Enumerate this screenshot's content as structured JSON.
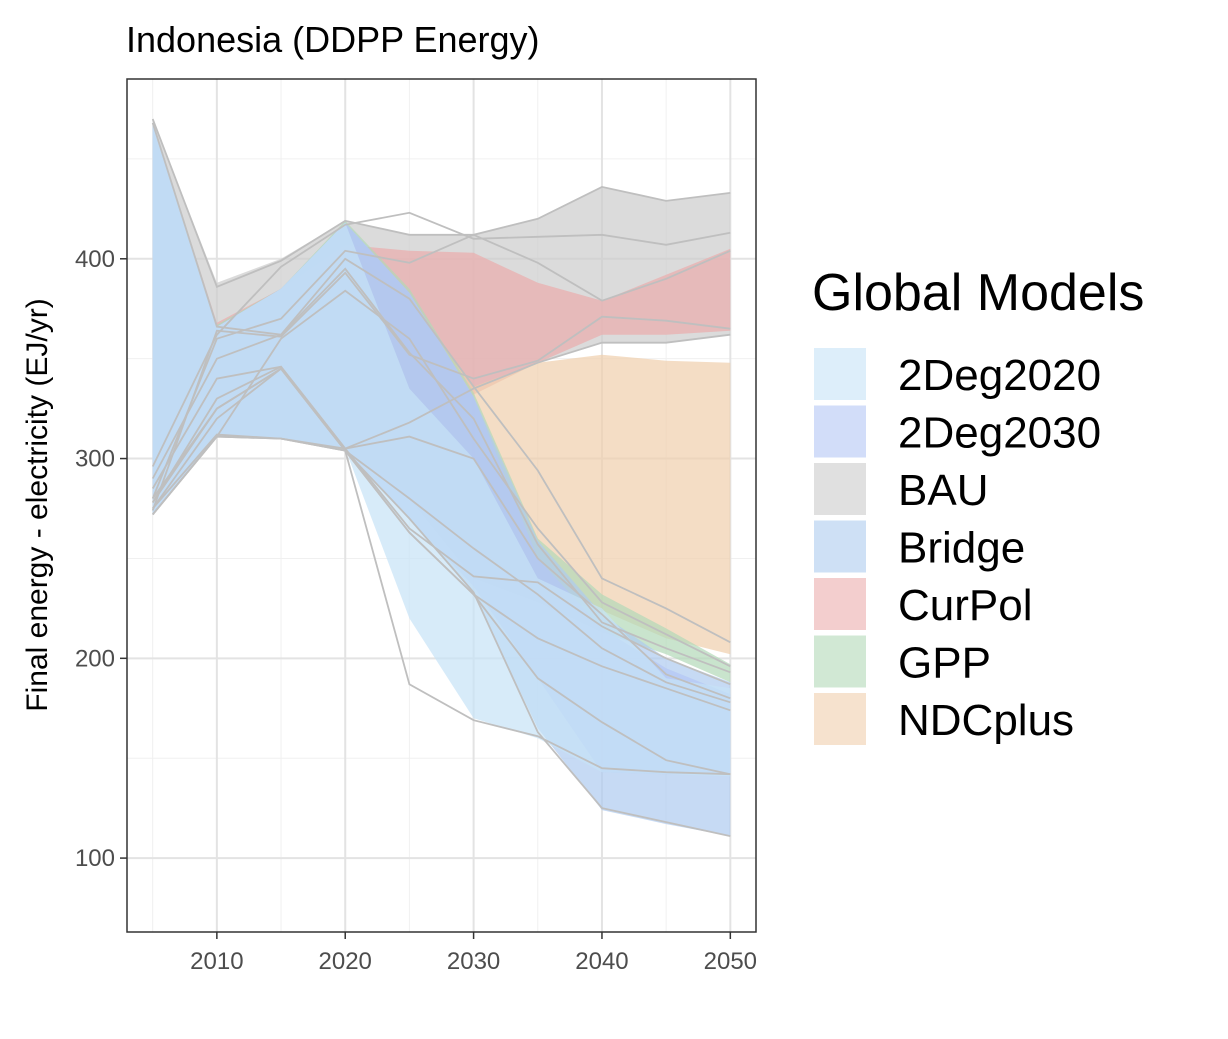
{
  "chart_data": {
    "type": "area",
    "title": "Indonesia (DDPP Energy)",
    "xlabel": "",
    "ylabel": "Final energy - electricity (EJ/yr)",
    "xlim": [
      2003,
      2052
    ],
    "ylim": [
      63,
      490
    ],
    "x_ticks": [
      2010,
      2020,
      2030,
      2040,
      2050
    ],
    "y_ticks": [
      100,
      200,
      300,
      400
    ],
    "grid": true,
    "legend": {
      "title": "Global Models",
      "placement": "right",
      "entries": [
        {
          "label": "2Deg2020",
          "color": "#c6e2f7"
        },
        {
          "label": "2Deg2030",
          "color": "#b4c6f5"
        },
        {
          "label": "BAU",
          "color": "#cccccc"
        },
        {
          "label": "Bridge",
          "color": "#aecbef"
        },
        {
          "label": "CurPol",
          "color": "#ebadad"
        },
        {
          "label": "GPP",
          "color": "#b2d9b8"
        },
        {
          "label": "NDCplus",
          "color": "#f0cfad"
        }
      ]
    },
    "ribbons": [
      {
        "name": "BAU",
        "color": "#cccccc",
        "opacity": 0.7,
        "x": [
          2005,
          2010,
          2015,
          2020,
          2025,
          2030,
          2035,
          2040,
          2045,
          2050
        ],
        "upper": [
          470,
          388,
          400,
          419,
          412,
          412,
          420,
          436,
          429,
          433
        ],
        "lower": [
          275,
          312,
          310,
          305,
          318,
          335,
          348,
          358,
          358,
          362
        ]
      },
      {
        "name": "CurPol",
        "color": "#ebadad",
        "opacity": 0.7,
        "x": [
          2005,
          2010,
          2015,
          2020,
          2025,
          2030,
          2035,
          2040,
          2045,
          2050
        ],
        "upper": [
          468,
          368,
          385,
          407,
          404,
          403,
          388,
          379,
          392,
          405
        ],
        "lower": [
          274,
          311,
          310,
          305,
          318,
          332,
          348,
          362,
          362,
          364
        ]
      },
      {
        "name": "NDCplus",
        "color": "#f0cfad",
        "opacity": 0.7,
        "x": [
          2005,
          2010,
          2015,
          2020,
          2025,
          2030,
          2035,
          2040,
          2045,
          2050
        ],
        "upper": [
          468,
          366,
          383,
          406,
          382,
          336,
          348,
          352,
          349,
          348
        ],
        "lower": [
          272,
          311,
          310,
          305,
          283,
          255,
          232,
          224,
          210,
          202
        ]
      },
      {
        "name": "GPP",
        "color": "#b2d9b8",
        "opacity": 0.7,
        "x": [
          2005,
          2010,
          2015,
          2020,
          2025,
          2030,
          2035,
          2040,
          2045,
          2050
        ],
        "upper": [
          468,
          367,
          385,
          419,
          385,
          333,
          260,
          232,
          215,
          197
        ],
        "lower": [
          272,
          311,
          310,
          304,
          280,
          240,
          228,
          213,
          202,
          188
        ]
      },
      {
        "name": "Bridge",
        "color": "#aecbef",
        "opacity": 0.7,
        "x": [
          2005,
          2010,
          2015,
          2020,
          2025,
          2030,
          2035,
          2040,
          2045,
          2050
        ],
        "upper": [
          467,
          366,
          385,
          418,
          383,
          331,
          259,
          222,
          200,
          188
        ],
        "lower": [
          272,
          311,
          310,
          305,
          270,
          232,
          165,
          124,
          117,
          111
        ]
      },
      {
        "name": "2Deg2030",
        "color": "#b4c6f5",
        "opacity": 0.7,
        "x": [
          2005,
          2010,
          2015,
          2020,
          2025,
          2030,
          2035,
          2040,
          2045,
          2050
        ],
        "upper": [
          467,
          366,
          385,
          418,
          383,
          331,
          250,
          215,
          195,
          182
        ],
        "lower": [
          272,
          311,
          310,
          305,
          270,
          236,
          190,
          143,
          142,
          142
        ]
      },
      {
        "name": "2Deg2020",
        "color": "#c6e2f7",
        "opacity": 0.7,
        "x": [
          2005,
          2010,
          2015,
          2020,
          2025,
          2030,
          2035,
          2040,
          2045,
          2050
        ],
        "upper": [
          467,
          366,
          385,
          418,
          335,
          300,
          240,
          225,
          190,
          185
        ],
        "lower": [
          272,
          311,
          310,
          305,
          220,
          170,
          160,
          143,
          142,
          141
        ]
      }
    ],
    "lines": [
      {
        "x": [
          2005,
          2010,
          2015,
          2020,
          2025,
          2030,
          2035,
          2040,
          2045,
          2050
        ],
        "y": [
          470,
          386,
          399,
          419,
          412,
          412,
          420,
          436,
          429,
          433
        ]
      },
      {
        "x": [
          2005,
          2010,
          2015,
          2020,
          2025,
          2030,
          2035,
          2040,
          2045,
          2050
        ],
        "y": [
          296,
          362,
          396,
          417,
          423,
          410,
          411,
          412,
          407,
          413
        ]
      },
      {
        "x": [
          2005,
          2010,
          2015,
          2020,
          2025,
          2030,
          2035,
          2040,
          2045,
          2050
        ],
        "y": [
          280,
          360,
          370,
          404,
          398,
          412,
          398,
          379,
          390,
          404
        ]
      },
      {
        "x": [
          2005,
          2010,
          2015,
          2020,
          2025,
          2030,
          2035,
          2040,
          2045,
          2050
        ],
        "y": [
          274,
          364,
          361,
          393,
          352,
          340,
          349,
          371,
          369,
          365
        ]
      },
      {
        "x": [
          2005,
          2010,
          2015,
          2020,
          2025,
          2030,
          2035,
          2040,
          2045,
          2050
        ],
        "y": [
          275,
          312,
          310,
          305,
          318,
          335,
          348,
          358,
          358,
          362
        ]
      },
      {
        "x": [
          2005,
          2010,
          2015,
          2020,
          2025,
          2030,
          2035,
          2040,
          2045,
          2050
        ],
        "y": [
          468,
          366,
          362,
          400,
          380,
          336,
          294,
          240,
          225,
          208
        ]
      },
      {
        "x": [
          2005,
          2010,
          2015,
          2020,
          2025,
          2030,
          2035,
          2040,
          2045,
          2050
        ],
        "y": [
          272,
          311,
          360,
          384,
          360,
          310,
          265,
          228,
          212,
          196
        ]
      },
      {
        "x": [
          2005,
          2010,
          2015,
          2020,
          2025,
          2030,
          2035,
          2040,
          2045,
          2050
        ],
        "y": [
          290,
          350,
          362,
          395,
          353,
          320,
          257,
          218,
          205,
          193
        ]
      },
      {
        "x": [
          2005,
          2010,
          2015,
          2020,
          2025,
          2030,
          2035,
          2040,
          2045,
          2050
        ],
        "y": [
          285,
          340,
          346,
          305,
          311,
          300,
          250,
          222,
          192,
          180
        ]
      },
      {
        "x": [
          2005,
          2010,
          2015,
          2020,
          2025,
          2030,
          2035,
          2040,
          2045,
          2050
        ],
        "y": [
          278,
          330,
          346,
          305,
          265,
          241,
          238,
          216,
          200,
          187
        ]
      },
      {
        "x": [
          2005,
          2010,
          2015,
          2020,
          2025,
          2030,
          2035,
          2040,
          2045,
          2050
        ],
        "y": [
          272,
          311,
          310,
          304,
          280,
          255,
          232,
          205,
          188,
          178
        ]
      },
      {
        "x": [
          2005,
          2010,
          2015,
          2020,
          2025,
          2030,
          2035,
          2040,
          2045,
          2050
        ],
        "y": [
          275,
          320,
          345,
          304,
          263,
          232,
          210,
          196,
          185,
          174
        ]
      },
      {
        "x": [
          2005,
          2010,
          2015,
          2020,
          2025,
          2030,
          2035,
          2040,
          2045,
          2050
        ],
        "y": [
          278,
          325,
          345,
          304,
          263,
          232,
          190,
          168,
          149,
          142
        ]
      },
      {
        "x": [
          2005,
          2010,
          2015,
          2020,
          2025,
          2030,
          2035,
          2040,
          2045,
          2050
        ],
        "y": [
          280,
          325,
          345,
          304,
          187,
          169,
          161,
          145,
          143,
          142
        ]
      },
      {
        "x": [
          2005,
          2010,
          2015,
          2020,
          2025,
          2030,
          2035,
          2040,
          2045,
          2050
        ],
        "y": [
          272,
          311,
          310,
          304,
          270,
          233,
          163,
          125,
          118,
          111
        ]
      }
    ]
  }
}
